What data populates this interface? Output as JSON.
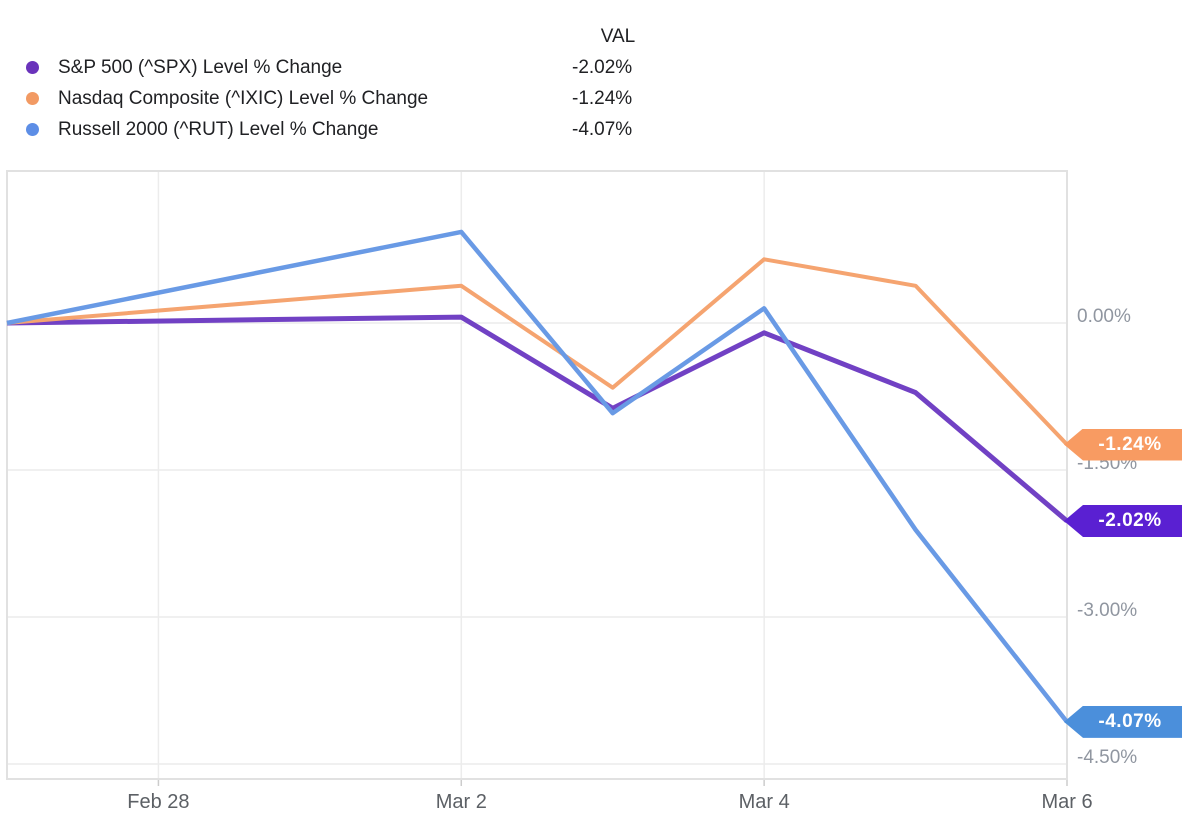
{
  "legend": {
    "val_header": "VAL",
    "items": [
      {
        "label": "S&P 500 (^SPX) Level % Change",
        "value": "-2.02%"
      },
      {
        "label": "Nasdaq Composite (^IXIC) Level % Change",
        "value": "-1.24%"
      },
      {
        "label": "Russell 2000 (^RUT) Level % Change",
        "value": "-4.07%"
      }
    ]
  },
  "chart_data": {
    "type": "line",
    "x_dates": [
      "Feb 27",
      "Mar 2",
      "Mar 3",
      "Mar 4",
      "Mar 5",
      "Mar 6"
    ],
    "x_day_offsets": [
      0,
      3,
      4,
      5,
      6,
      7
    ],
    "x_tick_labels": [
      "Feb 28",
      "Mar 2",
      "Mar 4",
      "Mar 6"
    ],
    "x_tick_offsets": [
      1,
      3,
      5,
      7
    ],
    "x_gridline_offsets": [
      1,
      3,
      5
    ],
    "y_tick_labels": [
      "0.00%",
      "-1.50%",
      "-3.00%",
      "-4.50%"
    ],
    "y_ticks": [
      0,
      -1.5,
      -3.0,
      -4.5
    ],
    "ylim": [
      -4.66,
      1.55
    ],
    "ylabel": "Level % Change",
    "grid": true,
    "legend_position": "top-left",
    "series": [
      {
        "name": "S&P 500 (^SPX) Level % Change",
        "color": "#7141c4",
        "dot_color": "#6a33bb",
        "tag_color": "#5a20d2",
        "end_label": "-2.02%",
        "values": [
          0,
          0.06,
          -0.87,
          -0.1,
          -0.71,
          -2.02
        ]
      },
      {
        "name": "Nasdaq Composite (^IXIC) Level % Change",
        "color": "#f5a470",
        "dot_color": "#f29a63",
        "tag_color": "#f89b62",
        "end_label": "-1.24%",
        "values": [
          0,
          0.38,
          -0.66,
          0.65,
          0.38,
          -1.24
        ]
      },
      {
        "name": "Russell 2000 (^RUT) Level % Change",
        "color": "#699ae5",
        "dot_color": "#5d8ee6",
        "tag_color": "#4b8fdb",
        "end_label": "-4.07%",
        "values": [
          0,
          0.93,
          -0.92,
          0.15,
          -2.11,
          -4.07
        ]
      }
    ],
    "colors": {
      "plot_border": "#e1e1e1",
      "gridline": "#ececec",
      "tick_mark": "#cccccc",
      "y_label_text": "#9096a0",
      "x_label_text": "#5c6065",
      "legend_text": "#202124",
      "background": "#ffffff"
    }
  }
}
